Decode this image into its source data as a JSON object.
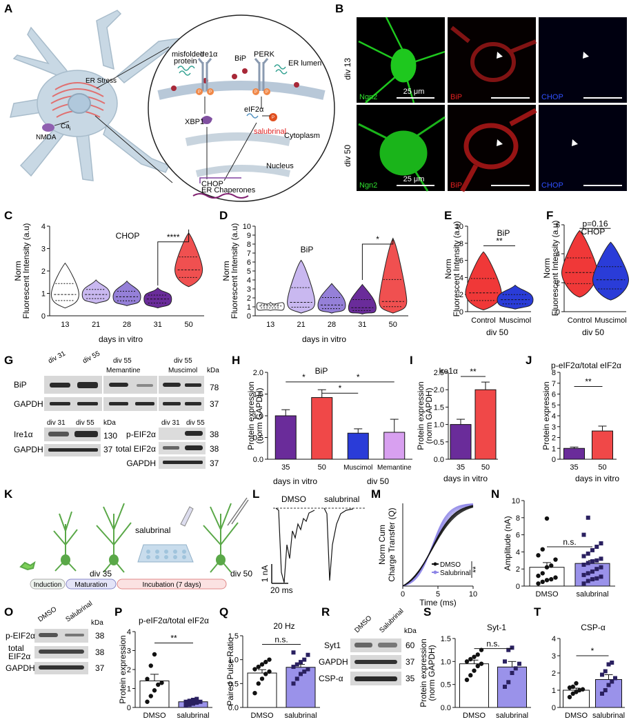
{
  "panel_labels": {
    "A": "A",
    "B": "B",
    "C": "C",
    "D": "D",
    "E": "E",
    "F": "F",
    "G": "G",
    "H": "H",
    "I": "I",
    "J": "J",
    "K": "K",
    "L": "L",
    "M": "M",
    "N": "N",
    "O": "O",
    "P": "P",
    "Q": "Q",
    "R": "R",
    "S": "S",
    "T": "T"
  },
  "panelA": {
    "er_stress": "ER Stress",
    "ca": "Ca",
    "ca_sub": "i",
    "nmda": "NMDA",
    "misfolded": "misfolded",
    "protein": "protein",
    "ire1a": "Ire1α",
    "bip": "BiP",
    "perk": "PERK",
    "er_lumen": "ER lumen",
    "p": "P",
    "xbp1": "XBP1",
    "eif2a": "eIF2α",
    "salubrinal": "salubrinal",
    "cytoplasm": "Cytoplasm",
    "nucleus": "Nucleus",
    "chop": "CHOP",
    "er_chap": "ER Chaperones"
  },
  "panelB": {
    "row1": "div 13",
    "row2": "div 50",
    "ch1": "Ngn2",
    "ch2": "BiP",
    "ch3": "CHOP",
    "scale": "25 μm",
    "colors": {
      "green": "#2fe02f",
      "red": "#e02020",
      "blue": "#3050ff"
    }
  },
  "axes": {
    "nfi": "Norm",
    "nfi2": "Fluorescent Intensity (a.u)",
    "div": "days in vitro",
    "div50": "div 50",
    "pe": "Protein expression",
    "pe2": "(norm GAPDH)",
    "norm_cum": "Norm Cum",
    "charge": "Charge Transfer (Q)",
    "time": "Time (ms)",
    "amp": "Amplitude (nA)",
    "ppr": "Paired Pulse Ratio"
  },
  "sig": {
    "four": "****",
    "one": "*",
    "two": "**",
    "ns": "n.s.",
    "p016": "p=0.16"
  },
  "panelG": {
    "div31": "div 31",
    "div55": "div 55",
    "div55m": "div 55",
    "mem": "Memantine",
    "div55mu": "div 55",
    "mus": "Muscimol",
    "kda": "kDa",
    "bip": "BiP",
    "gapdh": "GAPDH",
    "ire": "Ire1α",
    "peif": "p-EIF2α",
    "teif": "total EIF2α",
    "mw78": "78",
    "mw37": "37",
    "mw130": "130",
    "mw38": "38"
  },
  "panelL": {
    "dmso": "DMSO",
    "sal": "salubrinal",
    "sv": "1 nA",
    "sh": "20 ms"
  },
  "panelK": {
    "salubrinal": "salubrinal",
    "div35": "div 35",
    "div50": "div 50",
    "ind": "Induction",
    "mat": "Maturation",
    "inc": "Incubation (7 days)"
  },
  "panelO": {
    "dmso": "DMSO",
    "sal": "Salubrinal",
    "kda": "kDa",
    "peif": "p-EIF2α",
    "total": "total",
    "eif": "EIF2α",
    "gapdh": "GAPDH",
    "mw38": "38",
    "mw37": "37"
  },
  "panelR": {
    "dmso": "DMSO",
    "sal": "Salubrinal",
    "kda": "kDa",
    "syt1": "Syt1",
    "gapdh": "GAPDH",
    "csp": "CSP-α",
    "mw60": "60",
    "mw37": "37",
    "mw35": "35"
  },
  "chart_data": [
    {
      "panel": "C",
      "type": "violin",
      "title": "CHOP",
      "ylabel": "Norm Fluorescent Intensity (a.u)",
      "xlabel": "days in vitro",
      "categories": [
        "13",
        "21",
        "28",
        "31",
        "50"
      ],
      "ylim": [
        0,
        4
      ],
      "yticks": [
        "0",
        "1",
        "2",
        "3",
        "4"
      ],
      "colors": [
        "#ffffff",
        "#c9b8f0",
        "#9580d8",
        "#6a2c9a",
        "#f05050"
      ],
      "medians": [
        0.95,
        0.95,
        0.85,
        0.75,
        2.05
      ],
      "min": [
        0.35,
        0.55,
        0.45,
        0.35,
        1.3
      ],
      "max": [
        2.35,
        1.6,
        1.55,
        1.25,
        3.7
      ],
      "significance": [
        {
          "from": "31",
          "to": "50",
          "label": "****"
        }
      ]
    },
    {
      "panel": "D",
      "type": "violin",
      "title": "BiP",
      "ylabel": "Norm Fluorescent Intensity (a.u)",
      "xlabel": "days in vitro",
      "categories": [
        "13",
        "21",
        "28",
        "31",
        "50"
      ],
      "ylim": [
        0,
        10
      ],
      "yticks": [
        "0",
        "1",
        "2",
        "3",
        "4",
        "5",
        "6",
        "7",
        "8",
        "9",
        "10"
      ],
      "colors": [
        "#ffffff",
        "#c9b8f0",
        "#9580d8",
        "#6a2c9a",
        "#f05050"
      ],
      "medians": [
        1.1,
        1.5,
        1.2,
        0.9,
        1.6
      ],
      "min": [
        0.6,
        0.3,
        0.3,
        0.2,
        0.3
      ],
      "max": [
        1.5,
        6.2,
        3.6,
        3.5,
        8.6
      ],
      "significance": [
        {
          "from": "31",
          "to": "50",
          "label": "*"
        }
      ]
    },
    {
      "panel": "E",
      "type": "violin",
      "title": "BiP",
      "ylabel": "Norm Fluorescent Intensity (a.u)",
      "xlabel": "div 50",
      "categories": [
        "Control",
        "Muscimol"
      ],
      "ylim": [
        0,
        10
      ],
      "yticks": [
        "0",
        "2",
        "4",
        "6",
        "8",
        "10"
      ],
      "colors": [
        "#f03838",
        "#2a3cd8"
      ],
      "medians": [
        2.2,
        1.4
      ],
      "min": [
        0.2,
        0.3
      ],
      "max": [
        7.0,
        3.1
      ],
      "significance": [
        {
          "from": "Control",
          "to": "Muscimol",
          "label": "**"
        }
      ]
    },
    {
      "panel": "F",
      "type": "violin",
      "title": "CHOP",
      "ylabel": "Norm Fluorescent Intensity (a.u)",
      "xlabel": "div 50",
      "categories": [
        "Control",
        "Muscimol"
      ],
      "ylim": [
        0,
        6
      ],
      "yticks": [
        "0",
        "2",
        "4",
        "6"
      ],
      "colors": [
        "#f03838",
        "#2a3cd8"
      ],
      "medians": [
        2.7,
        2.2
      ],
      "min": [
        1.0,
        0.8
      ],
      "max": [
        5.6,
        4.8
      ],
      "significance": [
        {
          "from": "Control",
          "to": "Muscimol",
          "label": "p=0.16"
        }
      ]
    },
    {
      "panel": "H",
      "type": "bar",
      "title": "BiP",
      "ylabel": "Protein expression (norm GAPDH)",
      "categories": [
        "35",
        "50",
        "Muscimol",
        "Memantine"
      ],
      "group_labels": [
        "days in vitro",
        "div 50"
      ],
      "values": [
        1.0,
        1.42,
        0.6,
        0.62
      ],
      "errors": [
        0.14,
        0.18,
        0.1,
        0.3
      ],
      "colors": [
        "#6a2c9a",
        "#f04848",
        "#2a3cd8",
        "#d8a0f0"
      ],
      "ylim": [
        0,
        2.0
      ],
      "yticks": [
        "0.0",
        "0.5",
        "1.0",
        "1.5",
        "2.0"
      ],
      "significance": [
        {
          "from": "35",
          "to": "50",
          "label": "*"
        },
        {
          "from": "50",
          "to": "Muscimol",
          "label": "*"
        },
        {
          "from": "50",
          "to": "Memantine",
          "label": "*"
        }
      ]
    },
    {
      "panel": "I",
      "type": "bar",
      "title": "Ire1α",
      "ylabel": "Protein expression (norm GAPDH)",
      "xlabel": "days in vitro",
      "categories": [
        "35",
        "50"
      ],
      "values": [
        1.0,
        2.0
      ],
      "errors": [
        0.15,
        0.22
      ],
      "colors": [
        "#6a2c9a",
        "#f04848"
      ],
      "ylim": [
        0,
        2.5
      ],
      "yticks": [
        "0.0",
        "0.5",
        "1.0",
        "1.5",
        "2.0",
        "2.5"
      ],
      "significance": [
        {
          "from": "35",
          "to": "50",
          "label": "**"
        }
      ]
    },
    {
      "panel": "J",
      "type": "bar",
      "title": "p-eIF2α/total eIF2α",
      "ylabel": "Protein expression",
      "xlabel": "days in vitro",
      "categories": [
        "35",
        "50"
      ],
      "values": [
        1.0,
        2.6
      ],
      "errors": [
        0.12,
        0.45
      ],
      "colors": [
        "#6a2c9a",
        "#f04848"
      ],
      "ylim": [
        0,
        8
      ],
      "yticks": [
        "0",
        "1",
        "2",
        "3",
        "4",
        "5",
        "6",
        "7",
        "8"
      ],
      "significance": [
        {
          "from": "35",
          "to": "50",
          "label": "**"
        }
      ]
    },
    {
      "panel": "M",
      "type": "line",
      "ylabel": "Norm Cum Charge Transfer (Q)",
      "xlabel": "Time (ms)",
      "xlim": [
        0,
        10
      ],
      "ylim": [
        0,
        1
      ],
      "xticks": [
        "0",
        "5",
        "10"
      ],
      "series": [
        {
          "name": "DMSO",
          "color": "#111111",
          "k": [
            0.34,
            0.36,
            0.38,
            0.4
          ]
        },
        {
          "name": "Salubrinal",
          "color": "#8c84e6",
          "k": [
            0.4,
            0.44,
            0.48,
            0.52,
            0.56
          ]
        }
      ],
      "significance": "**"
    },
    {
      "panel": "N",
      "type": "bar",
      "ylabel": "Amplitude (nA)",
      "categories": [
        "DMSO",
        "salubrinal"
      ],
      "values": [
        2.2,
        2.65
      ],
      "errors": [
        0.55,
        0.35
      ],
      "colors": [
        "#ffffff",
        "#9a92ea"
      ],
      "ylim": [
        0,
        10
      ],
      "yticks": [
        "0",
        "2",
        "4",
        "6",
        "8",
        "10"
      ],
      "points": [
        [
          0.3,
          0.5,
          0.7,
          0.8,
          1.0,
          1.2,
          1.5,
          2.2,
          2.4,
          3.1,
          3.6,
          4.3,
          7.9
        ],
        [
          0.3,
          0.6,
          0.8,
          0.9,
          1.1,
          1.3,
          1.5,
          1.7,
          2.0,
          2.2,
          2.5,
          2.7,
          2.9,
          3.0,
          3.2,
          3.5,
          3.8,
          4.2,
          4.6,
          5.0,
          6.0,
          8.0
        ]
      ],
      "significance": [
        {
          "from": "DMSO",
          "to": "salubrinal",
          "label": "n.s."
        }
      ]
    },
    {
      "panel": "P",
      "type": "bar",
      "title": "p-eIF2α/total eIF2α",
      "ylabel": "Protein expression",
      "categories": [
        "DMSO",
        "salubrinal"
      ],
      "values": [
        1.4,
        0.3
      ],
      "errors": [
        0.35,
        0.05
      ],
      "colors": [
        "#ffffff",
        "#9a92ea"
      ],
      "ylim": [
        0,
        4
      ],
      "yticks": [
        "0",
        "1",
        "2",
        "3",
        "4"
      ],
      "points": [
        [
          0.3,
          0.6,
          0.9,
          1.2,
          1.3,
          1.5,
          2.2,
          2.8
        ],
        [
          0.1,
          0.15,
          0.2,
          0.25,
          0.3,
          0.3,
          0.35,
          0.4,
          0.45
        ]
      ],
      "significance": [
        {
          "from": "DMSO",
          "to": "salubrinal",
          "label": "**"
        }
      ]
    },
    {
      "panel": "Q",
      "type": "bar",
      "title": "20 Hz",
      "ylabel": "Paired Pulse Ratio",
      "categories": [
        "DMSO",
        "salubrinal"
      ],
      "values": [
        0.72,
        0.84
      ],
      "errors": [
        0.07,
        0.06
      ],
      "colors": [
        "#ffffff",
        "#9a92ea"
      ],
      "ylim": [
        0,
        1.5
      ],
      "yticks": [
        "0.0",
        "0.5",
        "1.0",
        "1.5"
      ],
      "points": [
        [
          0.3,
          0.5,
          0.6,
          0.7,
          0.75,
          0.8,
          0.85,
          0.9,
          0.95,
          1.0
        ],
        [
          0.5,
          0.6,
          0.7,
          0.75,
          0.8,
          0.85,
          0.9,
          0.95,
          1.0,
          1.1,
          1.15
        ]
      ],
      "significance": [
        {
          "from": "DMSO",
          "to": "salubrinal",
          "label": "n.s."
        }
      ]
    },
    {
      "panel": "S",
      "type": "bar",
      "title": "Syt-1",
      "ylabel": "Protein expression (norm GAPDH)",
      "categories": [
        "DMSO",
        "salubrinal"
      ],
      "values": [
        0.95,
        0.88
      ],
      "errors": [
        0.08,
        0.12
      ],
      "colors": [
        "#ffffff",
        "#9a92ea"
      ],
      "ylim": [
        0,
        1.5
      ],
      "yticks": [
        "0.0",
        "0.5",
        "1.0",
        "1.5"
      ],
      "points": [
        [
          0.6,
          0.7,
          0.8,
          0.9,
          0.95,
          1.0,
          1.05,
          1.1,
          1.15,
          1.25
        ],
        [
          0.45,
          0.55,
          0.75,
          0.85,
          0.95,
          1.0,
          1.25,
          1.3
        ]
      ],
      "significance": [
        {
          "from": "DMSO",
          "to": "salubrinal",
          "label": "n.s."
        }
      ]
    },
    {
      "panel": "T",
      "type": "bar",
      "title": "CSP-α",
      "categories": [
        "DMSO",
        "salubrinal"
      ],
      "values": [
        1.0,
        1.62
      ],
      "errors": [
        0.12,
        0.28
      ],
      "colors": [
        "#ffffff",
        "#9a92ea"
      ],
      "ylim": [
        0,
        4
      ],
      "yticks": [
        "0",
        "1",
        "2",
        "3",
        "4"
      ],
      "points": [
        [
          0.6,
          0.8,
          0.9,
          1.0,
          1.05,
          1.15,
          1.2,
          1.4
        ],
        [
          0.8,
          1.0,
          1.3,
          1.5,
          1.7,
          1.9,
          2.1,
          2.5,
          2.6
        ]
      ],
      "significance": [
        {
          "from": "DMSO",
          "to": "salubrinal",
          "label": "*"
        }
      ]
    }
  ]
}
